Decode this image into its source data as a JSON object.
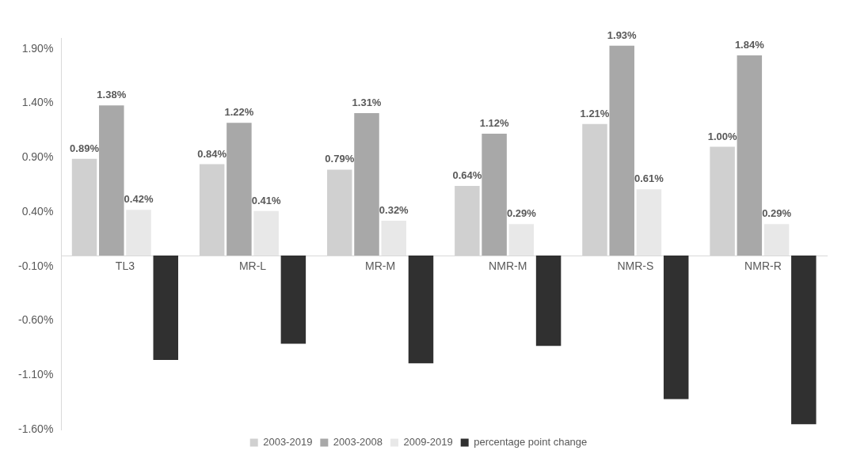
{
  "chart_data": {
    "type": "bar",
    "categories": [
      "TL3",
      "MR-L",
      "MR-M",
      "NMR-M",
      "NMR-S",
      "NMR-R"
    ],
    "series": [
      {
        "name": "2003-2019",
        "color": "#d0d0d0",
        "values": [
          0.89,
          0.84,
          0.79,
          0.64,
          1.21,
          1.0
        ],
        "value_labels": [
          "0.89%",
          "0.84%",
          "0.79%",
          "0.64%",
          "1.21%",
          "1.00%"
        ]
      },
      {
        "name": "2003-2008",
        "color": "#a8a8a8",
        "values": [
          1.38,
          1.22,
          1.31,
          1.12,
          1.93,
          1.84
        ],
        "value_labels": [
          "1.38%",
          "1.22%",
          "1.31%",
          "1.12%",
          "1.93%",
          "1.84%"
        ]
      },
      {
        "name": "2009-2019",
        "color": "#e8e8e8",
        "values": [
          0.42,
          0.41,
          0.32,
          0.29,
          0.61,
          0.29
        ],
        "value_labels": [
          "0.42%",
          "0.41%",
          "0.32%",
          "0.29%",
          "0.61%",
          "0.29%"
        ]
      },
      {
        "name": "percentage point change",
        "color": "#303030",
        "values": [
          -0.96,
          -0.81,
          -0.99,
          -0.83,
          -1.32,
          -1.55
        ]
      }
    ],
    "ylim": [
      -1.6,
      2.0
    ],
    "yticks": [
      {
        "value": -1.6,
        "label": "-1.60%"
      },
      {
        "value": -1.1,
        "label": "-1.10%"
      },
      {
        "value": -0.6,
        "label": "-0.60%"
      },
      {
        "value": -0.1,
        "label": "-0.10%"
      },
      {
        "value": 0.4,
        "label": "0.40%"
      },
      {
        "value": 0.9,
        "label": "0.90%"
      },
      {
        "value": 1.4,
        "label": "1.40%"
      },
      {
        "value": 1.9,
        "label": "1.90%"
      }
    ],
    "grid": false,
    "legend": "bottom"
  }
}
